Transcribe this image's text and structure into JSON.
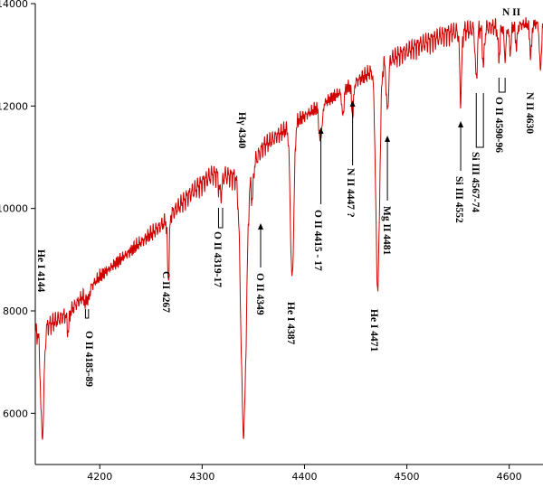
{
  "chart_data": {
    "type": "line",
    "title": "",
    "xlabel": "",
    "ylabel": "",
    "xlim": [
      4137,
      4633
    ],
    "ylim": [
      5000,
      14000
    ],
    "x_ticks": [
      4200,
      4300,
      4400,
      4500,
      4600
    ],
    "y_ticks": [
      6000,
      8000,
      10000,
      12000,
      14000
    ],
    "x_tick_labels": [
      "4200",
      "4300",
      "4400",
      "4500",
      "4600"
    ],
    "y_tick_labels": [
      "6000",
      "8000",
      "10000",
      "12000",
      "14000"
    ],
    "series_color": "#d00000",
    "continuum": [
      [
        4137,
        7600
      ],
      [
        4150,
        7750
      ],
      [
        4170,
        8000
      ],
      [
        4200,
        8700
      ],
      [
        4230,
        9200
      ],
      [
        4260,
        9700
      ],
      [
        4290,
        10350
      ],
      [
        4310,
        10700
      ],
      [
        4330,
        10650
      ],
      [
        4345,
        10700
      ],
      [
        4360,
        11250
      ],
      [
        4390,
        11700
      ],
      [
        4420,
        12100
      ],
      [
        4450,
        12500
      ],
      [
        4480,
        12900
      ],
      [
        4510,
        13200
      ],
      [
        4540,
        13450
      ],
      [
        4570,
        13550
      ],
      [
        4600,
        13600
      ],
      [
        4633,
        13650
      ]
    ],
    "absorption_lines": [
      {
        "x": 4143.8,
        "depth": 2100,
        "width": 1.6
      },
      {
        "x": 4169,
        "depth": 350,
        "width": 1.0
      },
      {
        "x": 4186,
        "depth": 200,
        "width": 1.0
      },
      {
        "x": 4189,
        "depth": 200,
        "width": 1.0
      },
      {
        "x": 4267,
        "depth": 1200,
        "width": 0.9
      },
      {
        "x": 4317,
        "depth": 280,
        "width": 1.0
      },
      {
        "x": 4319,
        "depth": 280,
        "width": 1.0
      },
      {
        "x": 4340.5,
        "depth": 5000,
        "width": 2.6
      },
      {
        "x": 4349,
        "depth": 600,
        "width": 1.0
      },
      {
        "x": 4387.9,
        "depth": 3000,
        "width": 1.7
      },
      {
        "x": 4414.9,
        "depth": 600,
        "width": 1.0
      },
      {
        "x": 4417,
        "depth": 400,
        "width": 1.0
      },
      {
        "x": 4437.5,
        "depth": 500,
        "width": 1.0
      },
      {
        "x": 4447,
        "depth": 600,
        "width": 1.0
      },
      {
        "x": 4471.5,
        "depth": 4300,
        "width": 1.9
      },
      {
        "x": 4481,
        "depth": 1000,
        "width": 1.1
      },
      {
        "x": 4552.6,
        "depth": 1300,
        "width": 1.0
      },
      {
        "x": 4567.8,
        "depth": 1000,
        "width": 1.0
      },
      {
        "x": 4574.8,
        "depth": 700,
        "width": 1.0
      },
      {
        "x": 4590,
        "depth": 600,
        "width": 1.0
      },
      {
        "x": 4596,
        "depth": 600,
        "width": 1.0
      },
      {
        "x": 4601,
        "depth": 500,
        "width": 1.0
      },
      {
        "x": 4607,
        "depth": 400,
        "width": 1.0
      },
      {
        "x": 4621,
        "depth": 600,
        "width": 1.0
      },
      {
        "x": 4630.5,
        "depth": 900,
        "width": 1.0
      }
    ],
    "annotations": [
      {
        "text": "He I 4144",
        "x": 4143.8
      },
      {
        "text": "O II 4185-89",
        "x": 4187
      },
      {
        "text": "C II 4267",
        "x": 4267
      },
      {
        "text": "O II 4319-17",
        "x": 4318
      },
      {
        "text": "Hγ 4340",
        "x": 4340.5
      },
      {
        "text": "O II 4349",
        "x": 4349
      },
      {
        "text": "He I 4387",
        "x": 4387.9
      },
      {
        "text": "O II 4415 - 17",
        "x": 4416
      },
      {
        "text": "N II 4447 ?",
        "x": 4447
      },
      {
        "text": "He I 4471",
        "x": 4471.5
      },
      {
        "text": "Mg II 4481",
        "x": 4481
      },
      {
        "text": "Si III 4552",
        "x": 4552.6
      },
      {
        "text": "Si III 4567-74",
        "x": 4571
      },
      {
        "text": "O II 4590-96",
        "x": 4593
      },
      {
        "text": "N II",
        "x": 4601
      },
      {
        "text": "N II 4630",
        "x": 4630.5
      }
    ]
  }
}
